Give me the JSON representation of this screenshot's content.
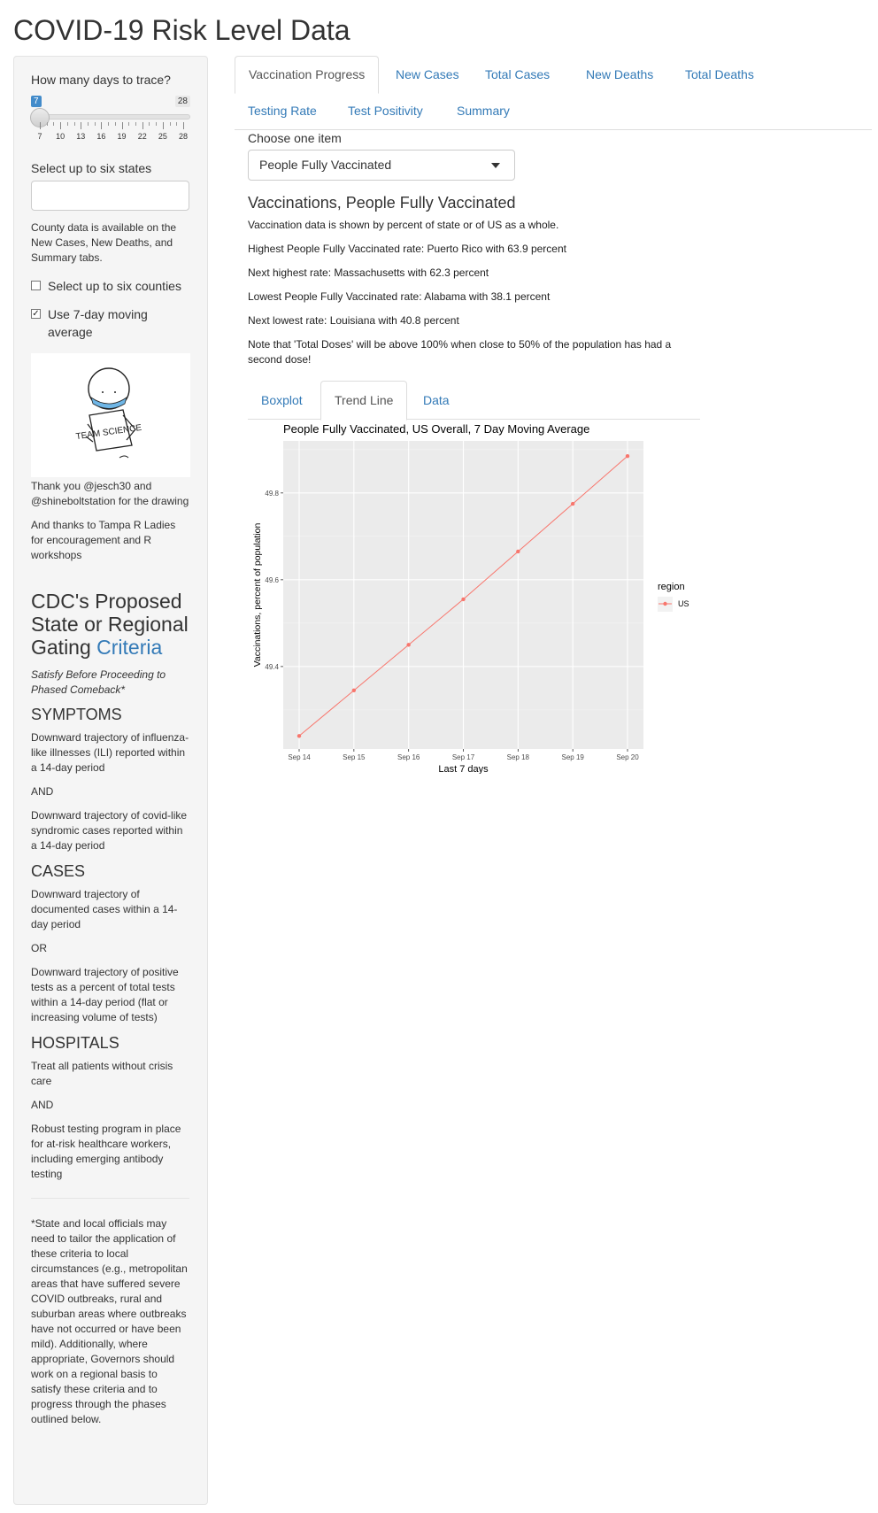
{
  "page": {
    "title": "COVID-19 Risk Level Data"
  },
  "sidebar": {
    "days_label": "How many days to trace?",
    "slider": {
      "min": 7,
      "max": 28,
      "value": 7,
      "ticks": [
        "7",
        "10",
        "13",
        "16",
        "19",
        "22",
        "25",
        "28"
      ]
    },
    "states_label": "Select up to six states",
    "states_value": "",
    "county_note": "County data is available on the New Cases, New Deaths, and Summary tabs.",
    "counties_checkbox": {
      "label": "Select up to six counties",
      "checked": false
    },
    "moving_avg_checkbox": {
      "label": "Use 7-day moving average",
      "checked": true
    },
    "drawing_text": "TEAM SCIENCE",
    "thanks1": "Thank you @jesch30 and @shineboltstation for the drawing",
    "thanks2": "And thanks to Tampa R Ladies for encouragement and R workshops",
    "cdc_title_pre": "CDC's Proposed State or Regional Gating",
    "cdc_title_link": "Criteria",
    "cdc_subtitle": "Satisfy Before Proceeding to Phased Comeback*",
    "symptoms_head": "SYMPTOMS",
    "symptoms_1": "Downward trajectory of influenza-like illnesses (ILI) reported within a 14-day period",
    "and_1": "AND",
    "symptoms_2": "Downward trajectory of covid-like syndromic cases reported within a 14-day period",
    "cases_head": "CASES",
    "cases_1": "Downward trajectory of documented cases within a 14-day period",
    "or_1": "OR",
    "cases_2": "Downward trajectory of positive tests as a percent of total tests within a 14-day period (flat or increasing volume of tests)",
    "hospitals_head": "HOSPITALS",
    "hospitals_1": "Treat all patients without crisis care",
    "and_2": "AND",
    "hospitals_2": "Robust testing program in place for at-risk healthcare workers, including emerging antibody testing",
    "footnote": "*State and local officials may need to tailor the application of these criteria to local circumstances (e.g., metropolitan areas that have suffered severe COVID outbreaks, rural and suburban areas where outbreaks have not occurred or have been mild). Additionally, where appropriate, Governors should work on a regional basis to satisfy these criteria and to progress through the phases outlined below."
  },
  "tabs": [
    "Vaccination Progress",
    "New Cases",
    "Total Cases",
    "New Deaths",
    "Total Deaths",
    "Testing Rate",
    "Test Positivity",
    "Summary"
  ],
  "main": {
    "choose_label": "Choose one item",
    "select_value": "People Fully Vaccinated",
    "section_title": "Vaccinations, People Fully Vaccinated",
    "p1": "Vaccination data is shown by percent of state or of US as a whole.",
    "p2": "Highest People Fully Vaccinated rate: Puerto Rico with 63.9 percent",
    "p3": "Next highest rate: Massachusetts with 62.3 percent",
    "p4": "Lowest People Fully Vaccinated rate: Alabama with 38.1 percent",
    "p5": "Next lowest rate: Louisiana with 40.8 percent",
    "p6": "Note that 'Total Doses' will be above 100% when close to 50% of the population has had a second dose!",
    "subtabs": [
      "Boxplot",
      "Trend Line",
      "Data"
    ]
  },
  "chart_data": {
    "type": "line",
    "title": "People Fully Vaccinated, US Overall, 7 Day Moving Average",
    "xlabel": "Last 7 days",
    "ylabel": "Vaccinations, percent of population",
    "categories": [
      "Sep 14",
      "Sep 15",
      "Sep 16",
      "Sep 17",
      "Sep 18",
      "Sep 19",
      "Sep 20"
    ],
    "series": [
      {
        "name": "US",
        "values": [
          49.24,
          49.345,
          49.45,
          49.555,
          49.665,
          49.775,
          49.885
        ],
        "color": "#F8766D"
      }
    ],
    "yticks": [
      49.4,
      49.6,
      49.8
    ],
    "ylim": [
      49.21,
      49.92
    ],
    "legend_title": "region",
    "legend_position": "right",
    "grid": true,
    "panel_bg": "#EBEBEB"
  }
}
